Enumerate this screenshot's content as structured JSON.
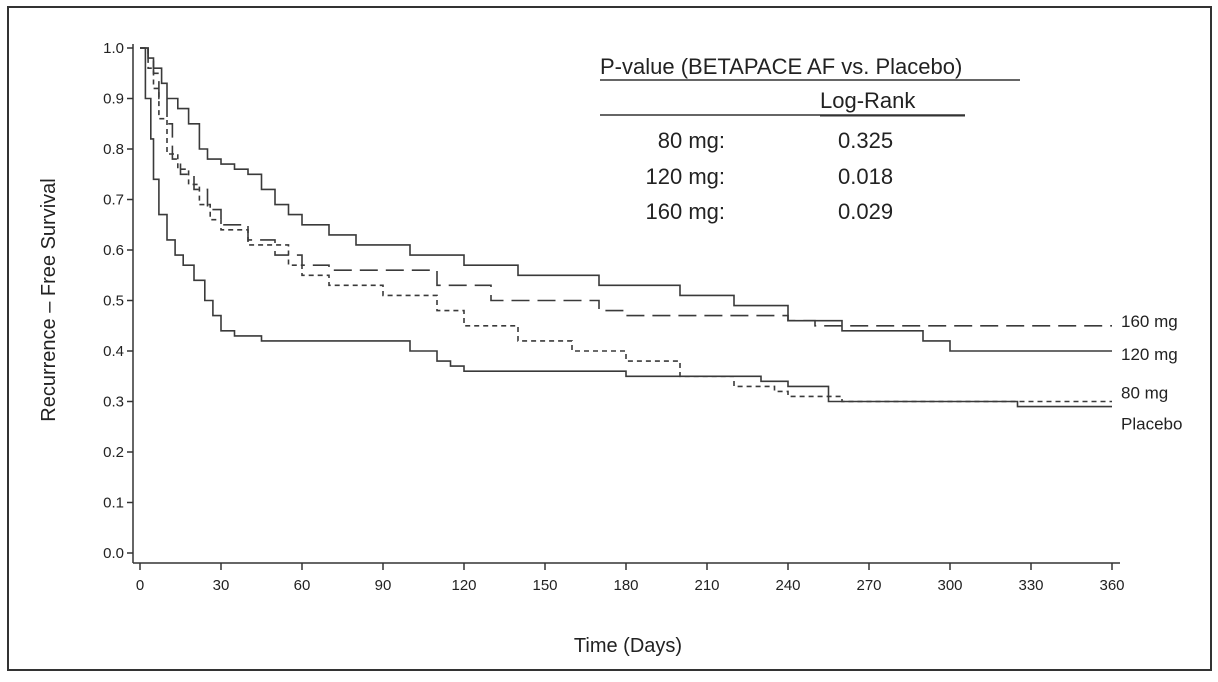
{
  "chart_data": {
    "type": "line",
    "title": "",
    "xlabel": "Time (Days)",
    "ylabel": "Recurrence – Free Survival",
    "xlim": [
      0,
      360
    ],
    "ylim": [
      0,
      1
    ],
    "x_ticks": [
      0,
      30,
      60,
      90,
      120,
      150,
      180,
      210,
      240,
      270,
      300,
      330,
      360
    ],
    "y_ticks": [
      0.0,
      0.1,
      0.2,
      0.3,
      0.4,
      0.5,
      0.6,
      0.7,
      0.8,
      0.9,
      1.0
    ],
    "y_tick_labels": [
      "0.0",
      "0.1",
      "0.2",
      "0.3",
      "0.4",
      "0.5",
      "0.6",
      "0.7",
      "0.8",
      "0.9",
      "1.0"
    ],
    "grid": false,
    "step": true,
    "series": [
      {
        "name": "160 mg",
        "style": "longdash",
        "x": [
          0,
          3,
          5,
          7,
          10,
          12,
          15,
          20,
          25,
          30,
          40,
          50,
          60,
          70,
          90,
          110,
          130,
          150,
          170,
          180,
          200,
          230,
          240,
          250,
          265,
          360
        ],
        "y": [
          1.0,
          0.98,
          0.95,
          0.9,
          0.85,
          0.78,
          0.75,
          0.72,
          0.68,
          0.65,
          0.62,
          0.59,
          0.57,
          0.56,
          0.56,
          0.53,
          0.5,
          0.5,
          0.48,
          0.47,
          0.47,
          0.47,
          0.46,
          0.45,
          0.45,
          0.45
        ]
      },
      {
        "name": "120 mg",
        "style": "solid",
        "x": [
          0,
          3,
          5,
          8,
          10,
          14,
          18,
          22,
          25,
          30,
          35,
          40,
          45,
          50,
          55,
          60,
          70,
          80,
          100,
          120,
          140,
          170,
          200,
          220,
          240,
          260,
          290,
          300,
          360
        ],
        "y": [
          1.0,
          0.98,
          0.96,
          0.93,
          0.9,
          0.88,
          0.85,
          0.8,
          0.78,
          0.77,
          0.76,
          0.75,
          0.72,
          0.69,
          0.67,
          0.65,
          0.63,
          0.61,
          0.59,
          0.57,
          0.55,
          0.53,
          0.51,
          0.49,
          0.46,
          0.44,
          0.42,
          0.4,
          0.4
        ]
      },
      {
        "name": "80 mg",
        "style": "shortdash",
        "x": [
          0,
          3,
          5,
          7,
          10,
          14,
          18,
          22,
          26,
          30,
          40,
          55,
          60,
          70,
          90,
          110,
          120,
          140,
          160,
          180,
          200,
          220,
          235,
          240,
          260,
          300,
          360
        ],
        "y": [
          1.0,
          0.96,
          0.92,
          0.86,
          0.79,
          0.76,
          0.73,
          0.69,
          0.66,
          0.64,
          0.61,
          0.57,
          0.55,
          0.53,
          0.51,
          0.48,
          0.45,
          0.42,
          0.4,
          0.38,
          0.35,
          0.33,
          0.32,
          0.31,
          0.3,
          0.3,
          0.3
        ]
      },
      {
        "name": "Placebo",
        "style": "solid",
        "x": [
          0,
          2,
          4,
          5,
          7,
          10,
          13,
          16,
          20,
          24,
          27,
          30,
          35,
          45,
          60,
          80,
          100,
          110,
          115,
          120,
          140,
          180,
          230,
          240,
          255,
          320,
          325,
          360
        ],
        "y": [
          1.0,
          0.9,
          0.82,
          0.74,
          0.67,
          0.62,
          0.59,
          0.57,
          0.54,
          0.5,
          0.47,
          0.44,
          0.43,
          0.42,
          0.42,
          0.42,
          0.4,
          0.38,
          0.37,
          0.36,
          0.36,
          0.35,
          0.34,
          0.33,
          0.3,
          0.3,
          0.29,
          0.29
        ]
      }
    ],
    "annotation": {
      "header": "P-value (BETAPACE AF  vs. Placebo)",
      "subheader": "Log-Rank",
      "rows": [
        {
          "label": "80 mg:",
          "value": "0.325"
        },
        {
          "label": "120 mg:",
          "value": "0.018"
        },
        {
          "label": "160 mg:",
          "value": "0.029"
        }
      ]
    }
  }
}
